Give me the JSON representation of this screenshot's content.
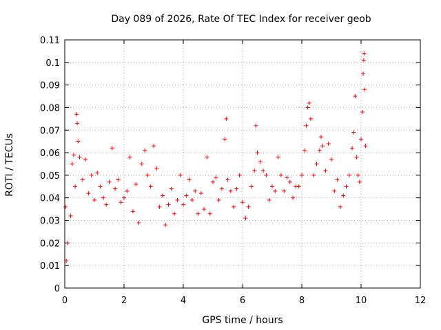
{
  "chart_data": {
    "type": "scatter",
    "title": "Day 089 of 2026, Rate Of TEC Index for receiver geob",
    "xlabel": "GPS time / hours",
    "ylabel": "ROTI / TECUs",
    "xlim": [
      0,
      12
    ],
    "ylim": [
      0,
      0.11
    ],
    "x_ticks": [
      0,
      2,
      4,
      6,
      8,
      10,
      12
    ],
    "x_tick_labels": [
      "0",
      "2",
      "4",
      "6",
      "8",
      "10",
      "12"
    ],
    "y_ticks": [
      0,
      0.01,
      0.02,
      0.03,
      0.04,
      0.05,
      0.06,
      0.07,
      0.08,
      0.09,
      0.1,
      0.11
    ],
    "y_tick_labels": [
      "0",
      "0.01",
      "0.02",
      "0.03",
      "0.04",
      "0.05",
      "0.06",
      "0.07",
      "0.08",
      "0.09",
      "0.1",
      "0.11"
    ],
    "grid": true,
    "marker": "+",
    "marker_color": "#ff0000",
    "data_x_range": [
      0,
      10.15
    ],
    "series": [
      {
        "name": "ROTI",
        "points": [
          [
            0.02,
            0.036
          ],
          [
            0.05,
            0.012
          ],
          [
            0.1,
            0.02
          ],
          [
            0.2,
            0.032
          ],
          [
            0.25,
            0.055
          ],
          [
            0.3,
            0.059
          ],
          [
            0.35,
            0.045
          ],
          [
            0.4,
            0.077
          ],
          [
            0.42,
            0.073
          ],
          [
            0.45,
            0.065
          ],
          [
            0.5,
            0.058
          ],
          [
            0.6,
            0.048
          ],
          [
            0.7,
            0.057
          ],
          [
            0.8,
            0.042
          ],
          [
            0.9,
            0.05
          ],
          [
            1.0,
            0.039
          ],
          [
            1.1,
            0.051
          ],
          [
            1.2,
            0.045
          ],
          [
            1.3,
            0.04
          ],
          [
            1.4,
            0.037
          ],
          [
            1.5,
            0.047
          ],
          [
            1.6,
            0.062
          ],
          [
            1.7,
            0.044
          ],
          [
            1.8,
            0.048
          ],
          [
            1.9,
            0.038
          ],
          [
            2.0,
            0.04
          ],
          [
            2.1,
            0.043
          ],
          [
            2.2,
            0.058
          ],
          [
            2.3,
            0.034
          ],
          [
            2.4,
            0.046
          ],
          [
            2.5,
            0.029
          ],
          [
            2.6,
            0.055
          ],
          [
            2.7,
            0.061
          ],
          [
            2.8,
            0.05
          ],
          [
            2.9,
            0.045
          ],
          [
            3.0,
            0.063
          ],
          [
            3.1,
            0.053
          ],
          [
            3.2,
            0.036
          ],
          [
            3.3,
            0.041
          ],
          [
            3.4,
            0.028
          ],
          [
            3.5,
            0.037
          ],
          [
            3.6,
            0.044
          ],
          [
            3.7,
            0.033
          ],
          [
            3.8,
            0.039
          ],
          [
            3.9,
            0.05
          ],
          [
            4.0,
            0.037
          ],
          [
            4.1,
            0.041
          ],
          [
            4.2,
            0.048
          ],
          [
            4.3,
            0.039
          ],
          [
            4.4,
            0.043
          ],
          [
            4.5,
            0.033
          ],
          [
            4.6,
            0.042
          ],
          [
            4.7,
            0.035
          ],
          [
            4.8,
            0.058
          ],
          [
            4.9,
            0.033
          ],
          [
            5.0,
            0.047
          ],
          [
            5.1,
            0.049
          ],
          [
            5.2,
            0.039
          ],
          [
            5.3,
            0.044
          ],
          [
            5.4,
            0.066
          ],
          [
            5.45,
            0.075
          ],
          [
            5.5,
            0.048
          ],
          [
            5.6,
            0.043
          ],
          [
            5.7,
            0.036
          ],
          [
            5.8,
            0.044
          ],
          [
            5.9,
            0.05
          ],
          [
            6.0,
            0.038
          ],
          [
            6.1,
            0.031
          ],
          [
            6.2,
            0.036
          ],
          [
            6.3,
            0.045
          ],
          [
            6.4,
            0.052
          ],
          [
            6.45,
            0.072
          ],
          [
            6.5,
            0.06
          ],
          [
            6.6,
            0.056
          ],
          [
            6.7,
            0.052
          ],
          [
            6.8,
            0.05
          ],
          [
            6.9,
            0.039
          ],
          [
            7.0,
            0.045
          ],
          [
            7.1,
            0.043
          ],
          [
            7.2,
            0.058
          ],
          [
            7.3,
            0.05
          ],
          [
            7.4,
            0.043
          ],
          [
            7.5,
            0.049
          ],
          [
            7.6,
            0.047
          ],
          [
            7.7,
            0.04
          ],
          [
            7.8,
            0.045
          ],
          [
            7.9,
            0.045
          ],
          [
            8.0,
            0.05
          ],
          [
            8.1,
            0.061
          ],
          [
            8.15,
            0.072
          ],
          [
            8.2,
            0.08
          ],
          [
            8.25,
            0.082
          ],
          [
            8.3,
            0.075
          ],
          [
            8.4,
            0.05
          ],
          [
            8.5,
            0.055
          ],
          [
            8.6,
            0.061
          ],
          [
            8.65,
            0.067
          ],
          [
            8.7,
            0.063
          ],
          [
            8.8,
            0.052
          ],
          [
            8.9,
            0.064
          ],
          [
            9.0,
            0.057
          ],
          [
            9.1,
            0.043
          ],
          [
            9.2,
            0.048
          ],
          [
            9.3,
            0.036
          ],
          [
            9.4,
            0.041
          ],
          [
            9.5,
            0.045
          ],
          [
            9.6,
            0.05
          ],
          [
            9.7,
            0.062
          ],
          [
            9.75,
            0.069
          ],
          [
            9.8,
            0.085
          ],
          [
            9.85,
            0.058
          ],
          [
            9.9,
            0.05
          ],
          [
            9.95,
            0.047
          ],
          [
            10.0,
            0.066
          ],
          [
            10.05,
            0.078
          ],
          [
            10.07,
            0.095
          ],
          [
            10.09,
            0.101
          ],
          [
            10.1,
            0.104
          ],
          [
            10.12,
            0.088
          ],
          [
            10.15,
            0.063
          ]
        ]
      }
    ]
  }
}
